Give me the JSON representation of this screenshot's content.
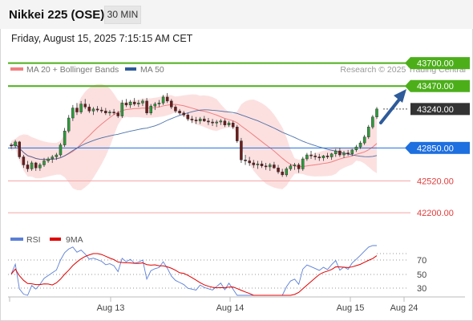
{
  "header": {
    "title": "Nikkei 225 (OSE)",
    "timeframe": "30 MIN",
    "timestamp": "Friday, August 15, 2025 7:15:15 AM CET"
  },
  "legend": {
    "ma20_label": "MA 20 + Bollinger Bands",
    "ma50_label": "MA 50",
    "credit": "Research © 2025 Trading Central",
    "ma20_color": "#f08080",
    "ma50_color": "#2e5b9a"
  },
  "rsi_legend": {
    "rsi_label": "RSI",
    "ma_label": "9MA",
    "rsi_color": "#5b7fd6",
    "ma_color": "#e00000"
  },
  "levels": [
    {
      "label": "43700.00",
      "value": 43700,
      "kind": "target",
      "color": "#4caf1a",
      "style": "solid-badge"
    },
    {
      "label": "43470.00",
      "value": 43470,
      "kind": "target",
      "color": "#4caf1a",
      "style": "solid-badge"
    },
    {
      "label": "43240.00",
      "value": 43240,
      "kind": "current",
      "color": "#333333",
      "style": "dark-badge"
    },
    {
      "label": "42850.00",
      "value": 42850,
      "kind": "pivot",
      "color": "#1e6fe0",
      "style": "blue-badge"
    },
    {
      "label": "42520.00",
      "value": 42520,
      "kind": "support",
      "color": "#e23b3b",
      "style": "text"
    },
    {
      "label": "42200.00",
      "value": 42200,
      "kind": "support",
      "color": "#e23b3b",
      "style": "text"
    }
  ],
  "rsi_ticks": [
    "70",
    "50",
    "30"
  ],
  "x_axis": [
    "Aug 13",
    "Aug 14",
    "Aug 15",
    "Aug 24"
  ],
  "chart_data": {
    "type": "candlestick",
    "ylim": [
      42000,
      43850
    ],
    "candles": [
      [
        42880,
        42900,
        42840,
        42870
      ],
      [
        42870,
        42930,
        42850,
        42910
      ],
      [
        42910,
        42920,
        42740,
        42760
      ],
      [
        42760,
        42780,
        42650,
        42680
      ],
      [
        42680,
        42720,
        42610,
        42640
      ],
      [
        42640,
        42720,
        42620,
        42700
      ],
      [
        42700,
        42710,
        42620,
        42650
      ],
      [
        42650,
        42700,
        42620,
        42680
      ],
      [
        42680,
        42750,
        42660,
        42720
      ],
      [
        42720,
        42760,
        42700,
        42740
      ],
      [
        42740,
        42780,
        42700,
        42760
      ],
      [
        42760,
        42800,
        42730,
        42780
      ],
      [
        42780,
        42900,
        42760,
        42880
      ],
      [
        42880,
        43050,
        42860,
        43020
      ],
      [
        43020,
        43180,
        43000,
        43150
      ],
      [
        43150,
        43280,
        43120,
        43250
      ],
      [
        43250,
        43300,
        43180,
        43210
      ],
      [
        43210,
        43320,
        43190,
        43290
      ],
      [
        43290,
        43340,
        43240,
        43260
      ],
      [
        43260,
        43290,
        43200,
        43220
      ],
      [
        43220,
        43260,
        43180,
        43240
      ],
      [
        43240,
        43270,
        43210,
        43230
      ],
      [
        43230,
        43260,
        43200,
        43220
      ],
      [
        43220,
        43250,
        43180,
        43200
      ],
      [
        43200,
        43230,
        43170,
        43210
      ],
      [
        43210,
        43240,
        43180,
        43200
      ],
      [
        43200,
        43220,
        43150,
        43170
      ],
      [
        43170,
        43330,
        43150,
        43300
      ],
      [
        43300,
        43340,
        43260,
        43280
      ],
      [
        43280,
        43330,
        43250,
        43310
      ],
      [
        43310,
        43350,
        43270,
        43290
      ],
      [
        43290,
        43330,
        43260,
        43300
      ],
      [
        43300,
        43340,
        43270,
        43320
      ],
      [
        43320,
        43350,
        43180,
        43200
      ],
      [
        43200,
        43290,
        43180,
        43270
      ],
      [
        43270,
        43310,
        43230,
        43290
      ],
      [
        43290,
        43330,
        43260,
        43300
      ],
      [
        43300,
        43380,
        43280,
        43360
      ],
      [
        43360,
        43400,
        43300,
        43320
      ],
      [
        43320,
        43340,
        43240,
        43260
      ],
      [
        43260,
        43280,
        43200,
        43220
      ],
      [
        43220,
        43240,
        43180,
        43200
      ],
      [
        43200,
        43220,
        43160,
        43180
      ],
      [
        43180,
        43200,
        43120,
        43140
      ],
      [
        43140,
        43170,
        43100,
        43130
      ],
      [
        43130,
        43160,
        43090,
        43120
      ],
      [
        43120,
        43160,
        43090,
        43140
      ],
      [
        43140,
        43170,
        43110,
        43120
      ],
      [
        43120,
        43150,
        43080,
        43110
      ],
      [
        43110,
        43140,
        43070,
        43100
      ],
      [
        43100,
        43130,
        43060,
        43110
      ],
      [
        43110,
        43140,
        43080,
        43120
      ],
      [
        43120,
        43140,
        43060,
        43080
      ],
      [
        43080,
        43120,
        43060,
        43100
      ],
      [
        43100,
        43120,
        43040,
        43060
      ],
      [
        43060,
        43080,
        42900,
        42920
      ],
      [
        42920,
        42950,
        42700,
        42730
      ],
      [
        42730,
        42780,
        42680,
        42720
      ],
      [
        42720,
        42760,
        42670,
        42700
      ],
      [
        42700,
        42730,
        42650,
        42680
      ],
      [
        42680,
        42720,
        42640,
        42690
      ],
      [
        42690,
        42720,
        42650,
        42670
      ],
      [
        42670,
        42700,
        42630,
        42660
      ],
      [
        42660,
        42700,
        42620,
        42680
      ],
      [
        42680,
        42710,
        42640,
        42650
      ],
      [
        42650,
        42680,
        42590,
        42610
      ],
      [
        42610,
        42640,
        42560,
        42580
      ],
      [
        42580,
        42660,
        42560,
        42640
      ],
      [
        42640,
        42690,
        42620,
        42670
      ],
      [
        42670,
        42700,
        42630,
        42680
      ],
      [
        42680,
        42700,
        42600,
        42640
      ],
      [
        42640,
        42760,
        42620,
        42740
      ],
      [
        42740,
        42800,
        42720,
        42780
      ],
      [
        42780,
        42820,
        42740,
        42770
      ],
      [
        42770,
        42800,
        42730,
        42760
      ],
      [
        42760,
        42790,
        42720,
        42750
      ],
      [
        42750,
        42780,
        42720,
        42770
      ],
      [
        42770,
        42800,
        42740,
        42760
      ],
      [
        42760,
        42800,
        42730,
        42790
      ],
      [
        42790,
        42840,
        42760,
        42820
      ],
      [
        42820,
        42850,
        42760,
        42780
      ],
      [
        42780,
        42820,
        42750,
        42800
      ],
      [
        42800,
        42830,
        42770,
        42790
      ],
      [
        42790,
        42840,
        42770,
        42830
      ],
      [
        42830,
        42880,
        42810,
        42860
      ],
      [
        42860,
        42920,
        42840,
        42900
      ],
      [
        42900,
        42980,
        42880,
        42960
      ],
      [
        42960,
        43080,
        42940,
        43060
      ],
      [
        43060,
        43180,
        43040,
        43160
      ],
      [
        43160,
        43260,
        43140,
        43240
      ]
    ]
  }
}
